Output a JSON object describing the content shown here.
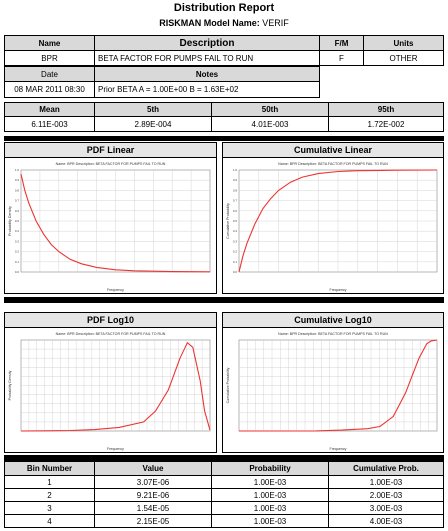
{
  "report": {
    "title": "Distribution Report",
    "model_label": "RISKMAN Model Name:",
    "model_name": "VERIF"
  },
  "header_table": {
    "col_name": "Name",
    "col_description": "Description",
    "col_fm": "F/M",
    "col_units": "Units",
    "name": "BPR",
    "description": "BETA FACTOR FOR PUMPS FAIL TO RUN",
    "fm": "F",
    "units": "OTHER",
    "col_date": "Date",
    "col_notes": "Notes",
    "date": "08 MAR 2011 08:30",
    "notes": "Prior BETA A = 1.00E+00 B = 1.63E+02"
  },
  "stats": {
    "mean_label": "Mean",
    "p5_label": "5th",
    "p50_label": "50th",
    "p95_label": "95th",
    "mean": "6.11E-003",
    "p5": "2.89E-004",
    "p50": "4.01E-003",
    "p95": "1.72E-002"
  },
  "charts": {
    "pdf_linear": {
      "title": "PDF Linear",
      "subtitle": "Name: BPR  Description: BETA FACTOR FOR PUMPS FAIL TO RUN",
      "ylabel": "Probability Density",
      "xlabel": "Frequency"
    },
    "cum_linear": {
      "title": "Cumulative Linear",
      "subtitle": "Name: BPR  Description: BETA FACTOR FOR PUMPS FAIL TO RUN",
      "ylabel": "Cumulative Probability",
      "xlabel": "Frequency"
    },
    "pdf_log": {
      "title": "PDF Log10",
      "subtitle": "Name: BPR  Description: BETA FACTOR FOR PUMPS FAIL TO RUN",
      "ylabel": "Probability Density",
      "xlabel": "Frequency"
    },
    "cum_log": {
      "title": "Cumulative Log10",
      "subtitle": "Name: BPR  Description: BETA FACTOR FOR PUMPS FAIL TO RUN",
      "ylabel": "Cumulative Probability",
      "xlabel": "Frequency"
    }
  },
  "chart_data": [
    {
      "type": "line",
      "title": "PDF Linear",
      "xlabel": "Frequency",
      "ylabel": "Probability Density",
      "x_scale": "linear",
      "x": [
        0,
        0.001,
        0.002,
        0.004,
        0.006,
        0.008,
        0.01,
        0.013,
        0.016,
        0.02,
        0.025,
        0.03,
        0.04,
        0.05
      ],
      "y": [
        0.96,
        0.8,
        0.68,
        0.5,
        0.37,
        0.27,
        0.2,
        0.125,
        0.08,
        0.045,
        0.022,
        0.012,
        0.004,
        0.002
      ],
      "ylim": [
        0,
        1
      ]
    },
    {
      "type": "line",
      "title": "Cumulative Linear",
      "xlabel": "Frequency",
      "ylabel": "Cumulative Probability",
      "x_scale": "linear",
      "x": [
        0,
        0.001,
        0.002,
        0.004,
        0.006,
        0.008,
        0.01,
        0.013,
        0.016,
        0.02,
        0.025,
        0.03,
        0.04,
        0.05
      ],
      "y": [
        0.0,
        0.16,
        0.28,
        0.47,
        0.62,
        0.72,
        0.8,
        0.88,
        0.93,
        0.965,
        0.985,
        0.993,
        0.998,
        1.0
      ],
      "ylim": [
        0,
        1
      ]
    },
    {
      "type": "line",
      "title": "PDF Log10",
      "xlabel": "Frequency",
      "ylabel": "Probability Density",
      "x_scale": "log",
      "x": [
        1e-09,
        1e-08,
        1e-07,
        1e-06,
        1e-05,
        0.0001,
        0.0003,
        0.001,
        0.003,
        0.006,
        0.01,
        0.02,
        0.03,
        0.05
      ],
      "y": [
        0.0,
        0.002,
        0.005,
        0.015,
        0.04,
        0.1,
        0.22,
        0.45,
        0.8,
        0.97,
        0.92,
        0.55,
        0.22,
        0.01
      ],
      "ylim": [
        0,
        1
      ]
    },
    {
      "type": "line",
      "title": "Cumulative Log10",
      "xlabel": "Frequency",
      "ylabel": "Cumulative Probability",
      "x_scale": "log",
      "x": [
        1e-09,
        1e-08,
        1e-07,
        1e-06,
        1e-05,
        0.0001,
        0.0003,
        0.001,
        0.003,
        0.006,
        0.01,
        0.02,
        0.03,
        0.05
      ],
      "y": [
        0.0,
        0.0,
        0.0,
        0.001,
        0.01,
        0.025,
        0.05,
        0.16,
        0.42,
        0.64,
        0.8,
        0.96,
        0.99,
        1.0
      ],
      "ylim": [
        0,
        1
      ]
    }
  ],
  "bins": {
    "col_bin": "Bin Number",
    "col_value": "Value",
    "col_prob": "Probability",
    "col_cum": "Cumulative Prob.",
    "rows": [
      {
        "bin": "1",
        "value": "3.07E-06",
        "prob": "1.00E-03",
        "cum": "1.00E-03"
      },
      {
        "bin": "2",
        "value": "9.21E-06",
        "prob": "1.00E-03",
        "cum": "2.00E-03"
      },
      {
        "bin": "3",
        "value": "1.54E-05",
        "prob": "1.00E-03",
        "cum": "3.00E-03"
      },
      {
        "bin": "4",
        "value": "2.15E-05",
        "prob": "1.00E-03",
        "cum": "4.00E-03"
      }
    ]
  },
  "colors": {
    "curve": "#ee3333",
    "header_bg": "#d9d9d9",
    "grid": "#cccccc"
  }
}
